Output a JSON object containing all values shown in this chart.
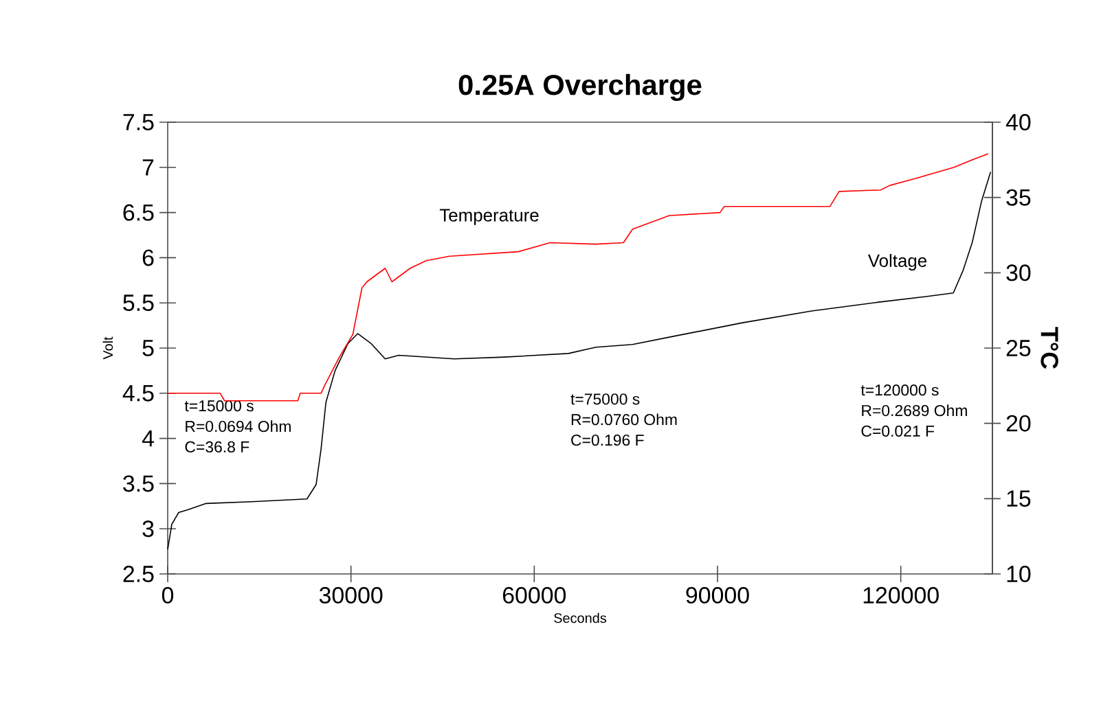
{
  "chart_data": {
    "type": "line",
    "title": "0.25A Overcharge",
    "xlabel": "Seconds",
    "ylabel": "Volt",
    "y2label": "T°C",
    "xlim": [
      0,
      135000
    ],
    "xticks": [
      0,
      30000,
      60000,
      90000,
      120000
    ],
    "ylim": [
      2.5,
      7.5
    ],
    "yticks": [
      2.5,
      3,
      3.5,
      4,
      4.5,
      5,
      5.5,
      6,
      6.5,
      7,
      7.5
    ],
    "y2lim": [
      10,
      40
    ],
    "y2ticks": [
      10,
      15,
      20,
      25,
      30,
      35,
      40
    ],
    "grid": false,
    "marker": "none",
    "line_style": "solid",
    "series": [
      {
        "name": "Voltage",
        "color": "#000000",
        "x": [
          0,
          670,
          1800,
          3300,
          6300,
          13800,
          22800,
          24300,
          25100,
          25900,
          27400,
          29500,
          31100,
          33300,
          35600,
          37800,
          46900,
          55100,
          65600,
          70100,
          76100,
          82800,
          94100,
          105400,
          116600,
          124100,
          128600,
          130200,
          131700,
          133200,
          134700
        ],
        "values": [
          2.77,
          3.05,
          3.18,
          3.21,
          3.28,
          3.3,
          3.33,
          3.49,
          3.88,
          4.4,
          4.75,
          5.05,
          5.16,
          5.05,
          4.88,
          4.92,
          4.88,
          4.9,
          4.94,
          5.01,
          5.04,
          5.13,
          5.28,
          5.41,
          5.51,
          5.57,
          5.61,
          5.86,
          6.17,
          6.62,
          6.95
        ]
      },
      {
        "name": "Temperature",
        "color": "#ff0000",
        "axis": "y2",
        "x": [
          0,
          8600,
          9300,
          21300,
          21700,
          25100,
          25800,
          28100,
          30300,
          31800,
          32600,
          35600,
          36700,
          39700,
          42300,
          46100,
          57400,
          62600,
          70100,
          74600,
          76100,
          82100,
          90400,
          91100,
          108400,
          109900,
          116700,
          118200,
          122700,
          128700,
          131700,
          134300
        ],
        "values": [
          22,
          22,
          21.5,
          21.5,
          22,
          22,
          22.6,
          24.4,
          25.9,
          29,
          29.4,
          30.3,
          29.4,
          30.3,
          30.8,
          31.1,
          31.4,
          32,
          31.9,
          32,
          32.9,
          33.8,
          34,
          34.4,
          34.4,
          35.4,
          35.5,
          35.8,
          36.3,
          37,
          37.5,
          37.9
        ]
      }
    ],
    "annotations": [
      "t=15000 s",
      "R=0.0694 Ohm",
      "C=36.8 F",
      "t=75000 s",
      "R=0.0760 Ohm",
      "C=0.196 F",
      "t=120000 s",
      "R=0.2689 Ohm",
      "C=0.021 F"
    ]
  }
}
